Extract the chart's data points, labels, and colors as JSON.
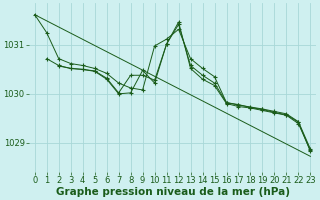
{
  "bg_color": "#cff0f0",
  "grid_color": "#a8d8d8",
  "line_color": "#1a5c1a",
  "xlabel": "Graphe pression niveau de la mer (hPa)",
  "xlabel_fontsize": 7.5,
  "tick_fontsize": 6,
  "ylabel_values": [
    1029,
    1030,
    1031
  ],
  "ylim": [
    1028.4,
    1031.85
  ],
  "xlim": [
    -0.5,
    23.5
  ],
  "xticks": [
    0,
    1,
    2,
    3,
    4,
    5,
    6,
    7,
    8,
    9,
    10,
    11,
    12,
    13,
    14,
    15,
    16,
    17,
    18,
    19,
    20,
    21,
    22,
    23
  ],
  "line1_x": [
    0,
    1,
    2,
    3,
    4,
    5,
    6,
    7,
    8,
    9,
    10,
    11,
    12,
    13,
    14,
    15,
    16,
    17,
    18,
    19,
    20,
    21,
    22,
    23
  ],
  "line1_y": [
    1031.62,
    1031.25,
    1030.72,
    1030.62,
    1030.58,
    1030.52,
    1030.42,
    1030.22,
    1030.12,
    1030.08,
    1030.98,
    1031.12,
    1031.32,
    1030.72,
    1030.52,
    1030.35,
    1029.82,
    1029.78,
    1029.72,
    1029.68,
    1029.62,
    1029.57,
    1029.42,
    1028.82
  ],
  "line2_x": [
    1,
    2,
    3,
    4,
    5,
    6,
    7,
    8,
    9,
    10,
    11,
    12,
    13,
    14,
    15,
    16,
    17,
    18,
    19,
    20,
    21,
    22,
    23
  ],
  "line2_y": [
    1030.72,
    1030.58,
    1030.52,
    1030.5,
    1030.47,
    1030.32,
    1030.02,
    1030.38,
    1030.38,
    1030.28,
    1031.02,
    1031.42,
    1030.58,
    1030.38,
    1030.22,
    1029.82,
    1029.77,
    1029.73,
    1029.69,
    1029.64,
    1029.59,
    1029.43,
    1028.87
  ],
  "line3_x": [
    2,
    3,
    4,
    5,
    6,
    7,
    8,
    9,
    10,
    11,
    12,
    13,
    14,
    15,
    16,
    17,
    18,
    19,
    20,
    21,
    22,
    23
  ],
  "line3_y": [
    1030.57,
    1030.52,
    1030.5,
    1030.46,
    1030.3,
    1030.0,
    1030.02,
    1030.48,
    1030.22,
    1031.02,
    1031.47,
    1030.52,
    1030.3,
    1030.17,
    1029.8,
    1029.74,
    1029.71,
    1029.66,
    1029.61,
    1029.56,
    1029.39,
    1028.84
  ],
  "line4_x": [
    0,
    23
  ],
  "line4_y": [
    1031.62,
    1028.72
  ]
}
